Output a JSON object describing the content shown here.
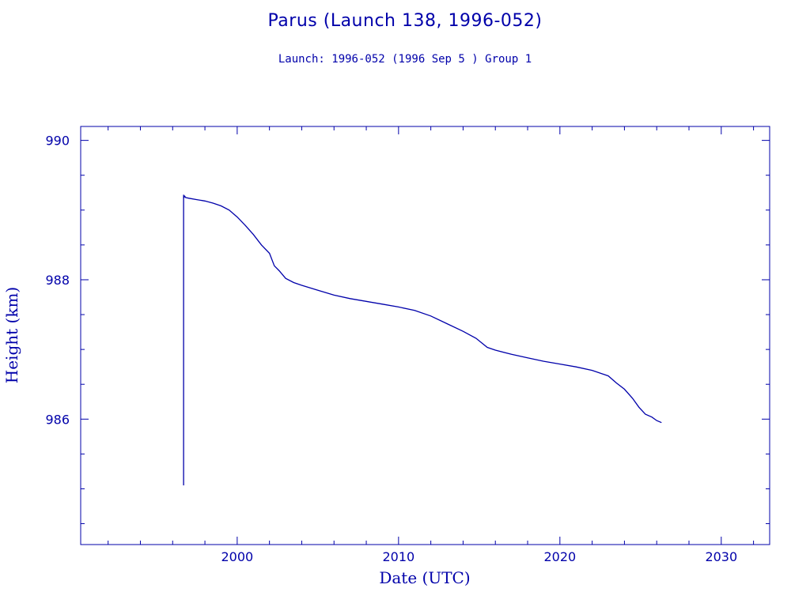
{
  "chart_data": {
    "type": "line",
    "title": "Parus (Launch 138, 1996-052)",
    "subtitle": "Launch: 1996-052  (1996 Sep  5 )  Group 1",
    "xlabel": "Date (UTC)",
    "ylabel": "Height (km)",
    "xlim": [
      1990.3,
      2033.0
    ],
    "ylim": [
      984.2,
      990.2
    ],
    "x_ticks": [
      2000,
      2010,
      2020,
      2030
    ],
    "y_ticks": [
      986,
      988,
      990
    ],
    "color": "#0000aa",
    "grid": false,
    "series": [
      {
        "x": [
          1996.68,
          1996.68,
          1996.7,
          1996.75,
          1996.8,
          1997.0,
          1997.5,
          1998.0,
          1998.5,
          1999.0,
          1999.5,
          2000.0,
          2000.5,
          2001.0,
          2001.5,
          2002.0,
          2002.3,
          2002.6,
          2003.0,
          2003.5,
          2004.0,
          2005.0,
          2006.0,
          2007.0,
          2008.0,
          2009.0,
          2010.0,
          2011.0,
          2012.0,
          2013.0,
          2014.0,
          2014.8,
          2015.5,
          2016.0,
          2017.0,
          2018.0,
          2019.0,
          2020.0,
          2021.0,
          2022.0,
          2023.0,
          2023.5,
          2024.0,
          2024.5,
          2024.9,
          2025.3,
          2025.7,
          2026.0,
          2026.3
        ],
        "y": [
          985.05,
          989.22,
          989.18,
          989.2,
          989.18,
          989.17,
          989.15,
          989.13,
          989.1,
          989.06,
          989.0,
          988.9,
          988.78,
          988.65,
          988.5,
          988.38,
          988.2,
          988.13,
          988.02,
          987.96,
          987.92,
          987.85,
          987.78,
          987.73,
          987.69,
          987.65,
          987.61,
          987.56,
          987.48,
          987.37,
          987.26,
          987.16,
          987.03,
          986.99,
          986.93,
          986.88,
          986.83,
          986.79,
          986.75,
          986.7,
          986.62,
          986.52,
          986.43,
          986.3,
          986.17,
          986.07,
          986.03,
          985.98,
          985.95
        ]
      }
    ]
  }
}
